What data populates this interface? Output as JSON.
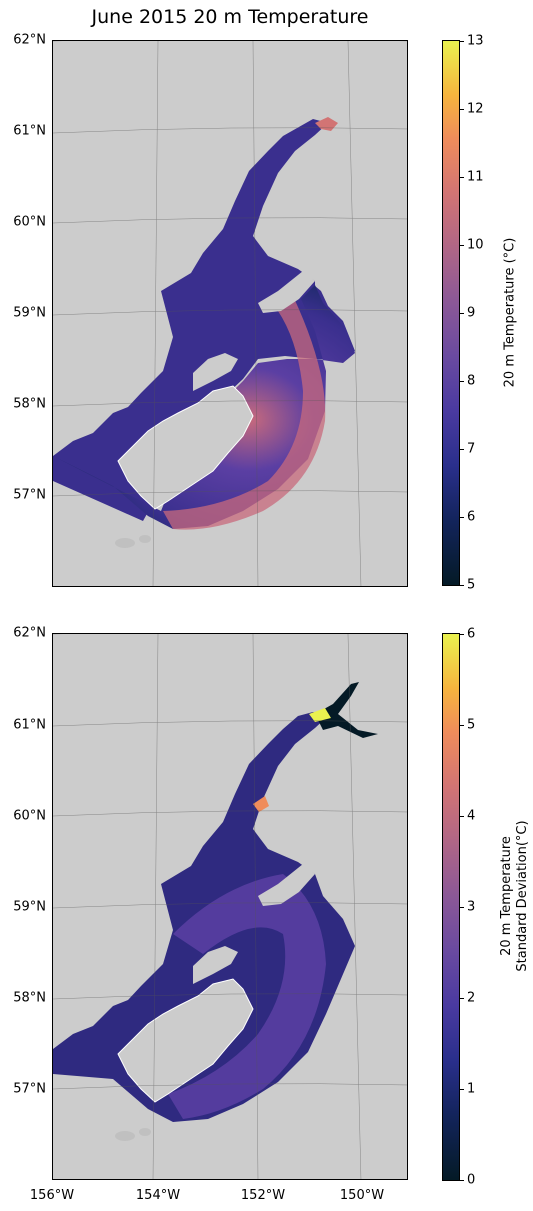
{
  "title": "June 2015 20 m Temperature",
  "lat_labels": [
    "62°N",
    "61°N",
    "60°N",
    "59°N",
    "58°N",
    "57°N"
  ],
  "lon_labels": [
    "156°W",
    "154°W",
    "152°W",
    "150°W"
  ],
  "top_map": {
    "colorbar_label": "20 m Temperature (°C)",
    "colorbar_ticks": [
      "5",
      "6",
      "7",
      "8",
      "9",
      "10",
      "11",
      "12",
      "13"
    ],
    "colorbar_min": 5,
    "colorbar_max": 13
  },
  "bottom_map": {
    "colorbar_label_line1": "20 m Temperature",
    "colorbar_label_line2": "Standard Deviation(°C)",
    "colorbar_ticks": [
      "0",
      "1",
      "2",
      "3",
      "4",
      "5",
      "6"
    ],
    "colorbar_min": 0,
    "colorbar_max": 6
  },
  "colors": {
    "land": "#cccccc",
    "water_low": "#13245c",
    "water_mid": "#5b3fa3",
    "water_high": "#e0775f",
    "peak": "#eaf24f"
  }
}
